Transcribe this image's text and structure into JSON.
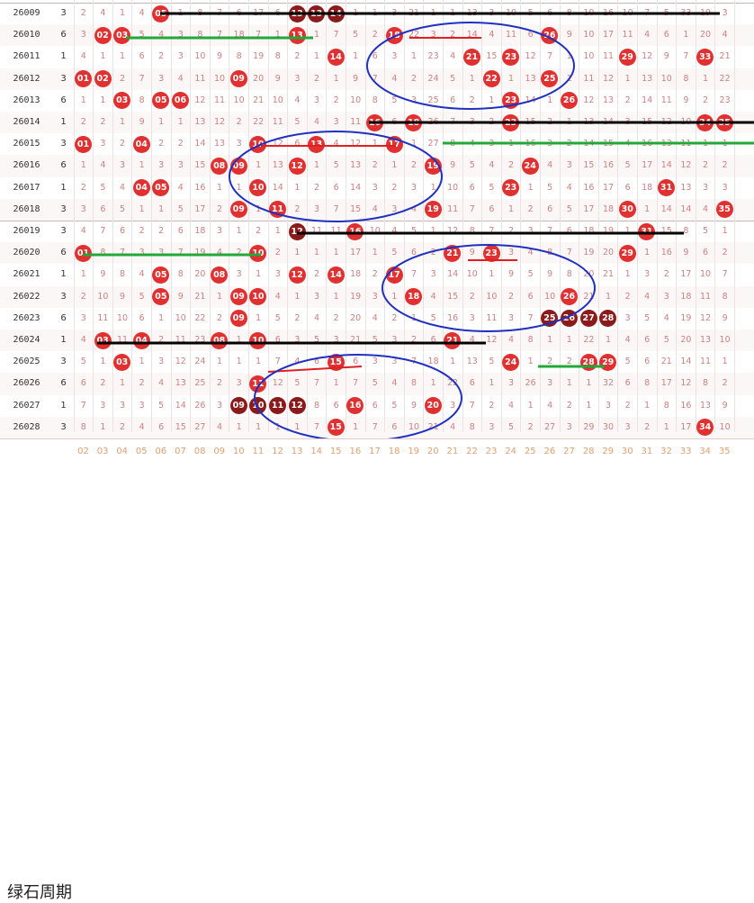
{
  "title": "绿石周期",
  "colors": {
    "red": "#e03030",
    "dark": "#8b1a1a",
    "text": "#d08080",
    "line_black": "#000000",
    "line_red": "#e02020",
    "line_green": "#22a838",
    "ellipse": "#2030c0"
  },
  "footer_numbers": [
    "02",
    "03",
    "04",
    "05",
    "06",
    "07",
    "08",
    "09",
    "10",
    "11",
    "12",
    "13",
    "14",
    "15",
    "16",
    "17",
    "18",
    "19",
    "20",
    "21",
    "22",
    "23",
    "24",
    "25",
    "26",
    "27",
    "28",
    "29",
    "30",
    "31",
    "32",
    "33",
    "34",
    "35"
  ],
  "rows": [
    {
      "period": "26009",
      "s": "3",
      "cells": [
        "2",
        "4",
        "1",
        "4",
        "05",
        "1",
        "8",
        "7",
        "6",
        "17",
        "6",
        "13",
        "13",
        "14",
        "1",
        "1",
        "3",
        "21",
        "1",
        "1",
        "13",
        "3",
        "10",
        "5",
        "6",
        "8",
        "10",
        "16",
        "10",
        "7",
        "5",
        "33",
        "19",
        "3"
      ],
      "balls": [
        5,
        13,
        14,
        32
      ],
      "dark": [
        13,
        14
      ]
    },
    {
      "period": "26010",
      "s": "6",
      "cells": [
        "3",
        "02",
        "03",
        "5",
        "4",
        "3",
        "8",
        "7",
        "18",
        "7",
        "1",
        "13",
        "1",
        "7",
        "5",
        "2",
        "18",
        "22",
        "3",
        "2",
        "14",
        "4",
        "11",
        "6",
        "26",
        "9",
        "10",
        "17",
        "11",
        "4",
        "6",
        "1",
        "20",
        "4"
      ],
      "balls": [
        2,
        3,
        13,
        18,
        26
      ],
      "dark": []
    },
    {
      "period": "26011",
      "s": "1",
      "cells": [
        "4",
        "1",
        "1",
        "6",
        "2",
        "3",
        "10",
        "9",
        "8",
        "19",
        "8",
        "2",
        "1",
        "14",
        "1",
        "6",
        "3",
        "1",
        "23",
        "4",
        "21",
        "15",
        "23",
        "12",
        "7",
        "1",
        "10",
        "11",
        "29",
        "12",
        "9",
        "7",
        "33",
        "21"
      ],
      "balls": [
        14,
        21,
        23,
        29,
        33
      ],
      "dark": []
    },
    {
      "period": "26012",
      "s": "3",
      "cells": [
        "01",
        "02",
        "2",
        "7",
        "3",
        "4",
        "11",
        "10",
        "09",
        "20",
        "9",
        "3",
        "2",
        "1",
        "9",
        "7",
        "4",
        "2",
        "24",
        "5",
        "1",
        "22",
        "1",
        "13",
        "25",
        "1",
        "11",
        "12",
        "1",
        "13",
        "10",
        "8",
        "1",
        "22"
      ],
      "balls": [
        1,
        2,
        9,
        22,
        25
      ],
      "dark": []
    },
    {
      "period": "26013",
      "s": "6",
      "cells": [
        "1",
        "1",
        "03",
        "8",
        "05",
        "06",
        "12",
        "11",
        "10",
        "21",
        "10",
        "4",
        "3",
        "2",
        "10",
        "8",
        "5",
        "3",
        "25",
        "6",
        "2",
        "1",
        "23",
        "14",
        "1",
        "26",
        "12",
        "13",
        "2",
        "14",
        "11",
        "9",
        "2",
        "23"
      ],
      "balls": [
        3,
        5,
        6,
        23,
        26
      ],
      "dark": []
    },
    {
      "period": "26014",
      "s": "1",
      "cells": [
        "2",
        "2",
        "1",
        "9",
        "1",
        "1",
        "13",
        "12",
        "2",
        "22",
        "11",
        "5",
        "4",
        "3",
        "11",
        "16",
        "6",
        "18",
        "26",
        "7",
        "3",
        "2",
        "23",
        "15",
        "2",
        "1",
        "13",
        "14",
        "3",
        "15",
        "12",
        "10",
        "34",
        "35"
      ],
      "balls": [
        16,
        18,
        23,
        34,
        35
      ],
      "dark": []
    },
    {
      "period": "26015",
      "s": "3",
      "cells": [
        "01",
        "3",
        "2",
        "04",
        "2",
        "2",
        "14",
        "13",
        "3",
        "10",
        "12",
        "6",
        "13",
        "4",
        "12",
        "1",
        "17",
        "1",
        "27",
        "8",
        "4",
        "3",
        "1",
        "16",
        "3",
        "2",
        "14",
        "15",
        "4",
        "16",
        "13",
        "11",
        "1",
        "1"
      ],
      "balls": [
        1,
        4,
        10,
        13,
        17
      ],
      "dark": []
    },
    {
      "period": "26016",
      "s": "6",
      "cells": [
        "1",
        "4",
        "3",
        "1",
        "3",
        "3",
        "15",
        "08",
        "09",
        "1",
        "13",
        "12",
        "1",
        "5",
        "13",
        "2",
        "1",
        "2",
        "19",
        "9",
        "5",
        "4",
        "2",
        "24",
        "4",
        "3",
        "15",
        "16",
        "5",
        "17",
        "14",
        "12",
        "2",
        "2"
      ],
      "balls": [
        8,
        9,
        12,
        19,
        24
      ],
      "dark": []
    },
    {
      "period": "26017",
      "s": "1",
      "cells": [
        "2",
        "5",
        "4",
        "04",
        "05",
        "4",
        "16",
        "1",
        "1",
        "10",
        "14",
        "1",
        "2",
        "6",
        "14",
        "3",
        "2",
        "3",
        "1",
        "10",
        "6",
        "5",
        "23",
        "1",
        "5",
        "4",
        "16",
        "17",
        "6",
        "18",
        "31",
        "13",
        "3",
        "3"
      ],
      "balls": [
        4,
        5,
        10,
        23,
        31
      ],
      "dark": []
    },
    {
      "period": "26018",
      "s": "3",
      "cells": [
        "3",
        "6",
        "5",
        "1",
        "1",
        "5",
        "17",
        "2",
        "09",
        "1",
        "11",
        "2",
        "3",
        "7",
        "15",
        "4",
        "3",
        "4",
        "19",
        "11",
        "7",
        "6",
        "1",
        "2",
        "6",
        "5",
        "17",
        "18",
        "30",
        "1",
        "14",
        "14",
        "4",
        "35"
      ],
      "balls": [
        9,
        11,
        19,
        30,
        35
      ],
      "dark": []
    },
    {
      "period": "26019",
      "s": "3",
      "cells": [
        "4",
        "7",
        "6",
        "2",
        "2",
        "6",
        "18",
        "3",
        "1",
        "2",
        "1",
        "12",
        "11",
        "11",
        "16",
        "10",
        "4",
        "5",
        "1",
        "12",
        "8",
        "7",
        "2",
        "3",
        "7",
        "6",
        "18",
        "19",
        "1",
        "31",
        "15",
        "8",
        "5",
        "1"
      ],
      "balls": [
        12,
        11,
        11,
        16,
        31
      ],
      "dark": [
        12,
        11,
        11
      ]
    },
    {
      "period": "26020",
      "s": "6",
      "cells": [
        "01",
        "8",
        "7",
        "3",
        "3",
        "7",
        "19",
        "4",
        "2",
        "10",
        "2",
        "1",
        "1",
        "1",
        "17",
        "1",
        "5",
        "6",
        "2",
        "21",
        "9",
        "23",
        "3",
        "4",
        "8",
        "7",
        "19",
        "20",
        "29",
        "1",
        "16",
        "9",
        "6",
        "2"
      ],
      "balls": [
        1,
        10,
        21,
        23,
        29
      ],
      "dark": []
    },
    {
      "period": "26021",
      "s": "1",
      "cells": [
        "1",
        "9",
        "8",
        "4",
        "05",
        "8",
        "20",
        "08",
        "3",
        "1",
        "3",
        "12",
        "2",
        "14",
        "18",
        "2",
        "17",
        "7",
        "3",
        "14",
        "10",
        "1",
        "9",
        "5",
        "9",
        "8",
        "20",
        "21",
        "1",
        "3",
        "2",
        "17",
        "10",
        "7"
      ],
      "balls": [
        5,
        8,
        12,
        14,
        17
      ],
      "dark": []
    },
    {
      "period": "26022",
      "s": "3",
      "cells": [
        "2",
        "10",
        "9",
        "5",
        "05",
        "9",
        "21",
        "1",
        "09",
        "10",
        "4",
        "1",
        "3",
        "1",
        "19",
        "3",
        "1",
        "18",
        "4",
        "15",
        "2",
        "10",
        "2",
        "6",
        "10",
        "26",
        "21",
        "1",
        "2",
        "4",
        "3",
        "18",
        "11",
        "8"
      ],
      "balls": [
        5,
        9,
        10,
        18,
        26
      ],
      "dark": []
    },
    {
      "period": "26023",
      "s": "6",
      "cells": [
        "3",
        "11",
        "10",
        "6",
        "1",
        "10",
        "22",
        "2",
        "09",
        "1",
        "5",
        "2",
        "4",
        "2",
        "20",
        "4",
        "2",
        "1",
        "5",
        "16",
        "3",
        "11",
        "3",
        "7",
        "25",
        "26",
        "27",
        "28",
        "3",
        "5",
        "4",
        "19",
        "12",
        "9"
      ],
      "balls": [
        9,
        25,
        26,
        27,
        28
      ],
      "dark": [
        25,
        26,
        27,
        28
      ]
    },
    {
      "period": "26024",
      "s": "1",
      "cells": [
        "4",
        "03",
        "11",
        "04",
        "2",
        "11",
        "23",
        "08",
        "1",
        "10",
        "6",
        "3",
        "5",
        "3",
        "21",
        "5",
        "3",
        "2",
        "6",
        "21",
        "4",
        "12",
        "4",
        "8",
        "1",
        "1",
        "22",
        "1",
        "4",
        "6",
        "5",
        "20",
        "13",
        "10"
      ],
      "balls": [
        3,
        4,
        8,
        10,
        21
      ],
      "dark": []
    },
    {
      "period": "26025",
      "s": "3",
      "cells": [
        "5",
        "1",
        "03",
        "1",
        "3",
        "12",
        "24",
        "1",
        "1",
        "1",
        "7",
        "4",
        "6",
        "15",
        "6",
        "3",
        "3",
        "7",
        "18",
        "1",
        "13",
        "5",
        "24",
        "1",
        "2",
        "2",
        "28",
        "29",
        "5",
        "6",
        "21",
        "14",
        "11",
        "1"
      ],
      "balls": [
        3,
        15,
        24,
        28,
        29
      ],
      "dark": []
    },
    {
      "period": "26026",
      "s": "6",
      "cells": [
        "6",
        "2",
        "1",
        "2",
        "4",
        "13",
        "25",
        "2",
        "3",
        "11",
        "12",
        "5",
        "7",
        "1",
        "7",
        "5",
        "4",
        "8",
        "1",
        "22",
        "6",
        "1",
        "3",
        "26",
        "3",
        "1",
        "1",
        "32",
        "6",
        "8",
        "17",
        "12",
        "8",
        "2"
      ],
      "balls": [
        11,
        22,
        26,
        32
      ],
      "dark": []
    },
    {
      "period": "26027",
      "s": "1",
      "cells": [
        "7",
        "3",
        "3",
        "3",
        "5",
        "14",
        "26",
        "3",
        "09",
        "10",
        "11",
        "12",
        "8",
        "6",
        "16",
        "6",
        "5",
        "9",
        "20",
        "3",
        "7",
        "2",
        "4",
        "1",
        "4",
        "2",
        "1",
        "3",
        "2",
        "1",
        "8",
        "16",
        "13",
        "9"
      ],
      "balls": [
        9,
        10,
        11,
        12,
        16,
        20
      ],
      "dark": [
        9,
        10,
        11,
        12
      ]
    },
    {
      "period": "26028",
      "s": "3",
      "cells": [
        "8",
        "1",
        "2",
        "4",
        "6",
        "15",
        "27",
        "4",
        "1",
        "1",
        "1",
        "1",
        "7",
        "15",
        "1",
        "7",
        "6",
        "10",
        "21",
        "4",
        "8",
        "3",
        "5",
        "2",
        "27",
        "3",
        "29",
        "30",
        "3",
        "2",
        "1",
        "17",
        "34",
        "10"
      ],
      "balls": [
        15,
        27,
        29,
        30,
        34
      ],
      "dark": []
    }
  ]
}
